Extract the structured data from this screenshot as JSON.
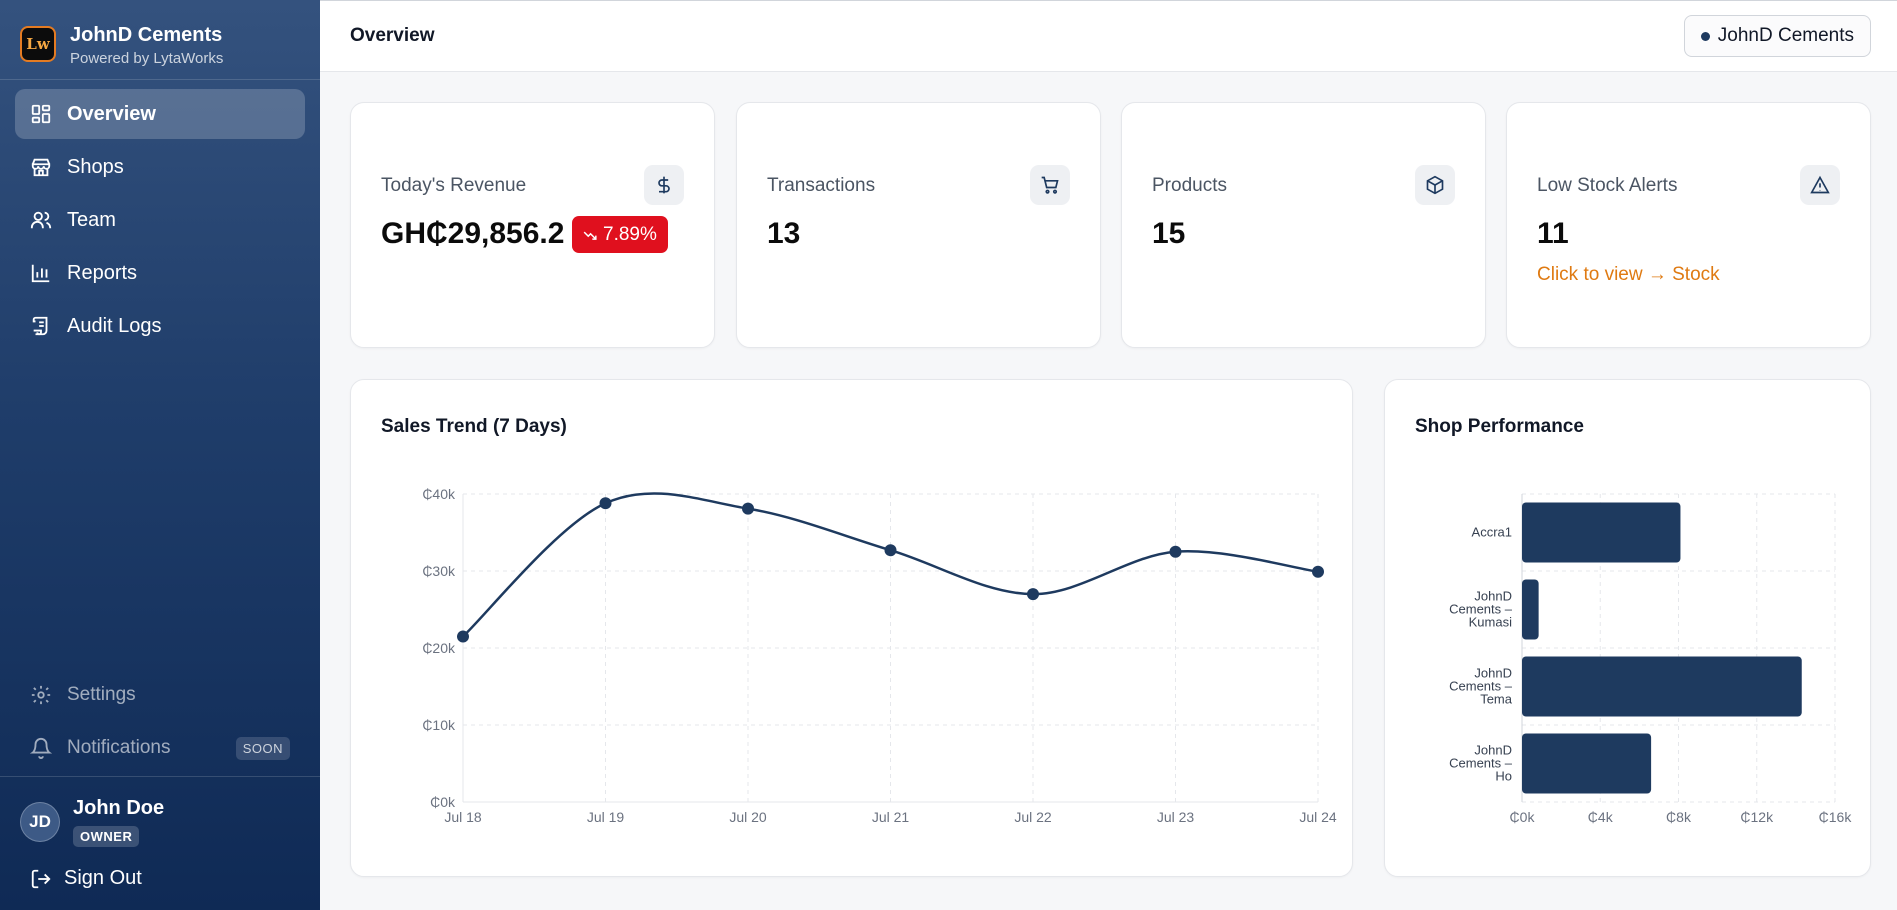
{
  "brand": {
    "name": "JohnD Cements",
    "subtitle": "Powered by LytaWorks",
    "logo_text": "Lw"
  },
  "nav": {
    "items": [
      {
        "label": "Overview",
        "icon": "dashboard-icon",
        "active": true
      },
      {
        "label": "Shops",
        "icon": "store-icon"
      },
      {
        "label": "Team",
        "icon": "users-icon"
      },
      {
        "label": "Reports",
        "icon": "bar-chart-icon"
      },
      {
        "label": "Audit Logs",
        "icon": "scroll-icon"
      }
    ],
    "bottom": [
      {
        "label": "Settings",
        "icon": "gear-icon"
      },
      {
        "label": "Notifications",
        "icon": "bell-icon",
        "badge": "SOON"
      }
    ]
  },
  "user": {
    "initials": "JD",
    "name": "John Doe",
    "role": "OWNER",
    "signout_label": "Sign Out"
  },
  "header": {
    "title": "Overview",
    "tenant": "JohnD Cements"
  },
  "stats": {
    "revenue": {
      "label": "Today's Revenue",
      "value": "GH₵29,856.2",
      "delta": "7.89%",
      "icon": "dollar-icon"
    },
    "transactions": {
      "label": "Transactions",
      "value": "13",
      "icon": "cart-icon"
    },
    "products": {
      "label": "Products",
      "value": "15",
      "icon": "box-icon"
    },
    "low_stock": {
      "label": "Low Stock Alerts",
      "value": "11",
      "link": "Click to view → Stock",
      "icon": "alert-triangle-icon"
    }
  },
  "colors": {
    "accent": "#1e3a5f",
    "danger": "#e0101e",
    "warning": "#df7a12"
  },
  "chart_data": [
    {
      "type": "line",
      "title": "Sales Trend (7 Days)",
      "x": [
        "Jul 18",
        "Jul 19",
        "Jul 20",
        "Jul 21",
        "Jul 22",
        "Jul 23",
        "Jul 24"
      ],
      "series": [
        {
          "values": [
            21500,
            38800,
            38100,
            32700,
            27000,
            32500,
            29900
          ]
        }
      ],
      "yticks": [
        "₵0k",
        "₵10k",
        "₵20k",
        "₵30k",
        "₵40k"
      ],
      "ylim": [
        0,
        40000
      ],
      "grid": true
    },
    {
      "type": "bar",
      "orientation": "horizontal",
      "title": "Shop Performance",
      "categories": [
        [
          "Accra1"
        ],
        [
          "JohnD",
          "Cements –",
          "Kumasi"
        ],
        [
          "JohnD",
          "Cements –",
          "Tema"
        ],
        [
          "JohnD",
          "Cements –",
          "Ho"
        ]
      ],
      "values": [
        8100,
        850,
        14300,
        6600
      ],
      "xticks": [
        "₵0k",
        "₵4k",
        "₵8k",
        "₵12k",
        "₵16k"
      ],
      "xlim": [
        0,
        16000
      ],
      "grid": true
    }
  ]
}
